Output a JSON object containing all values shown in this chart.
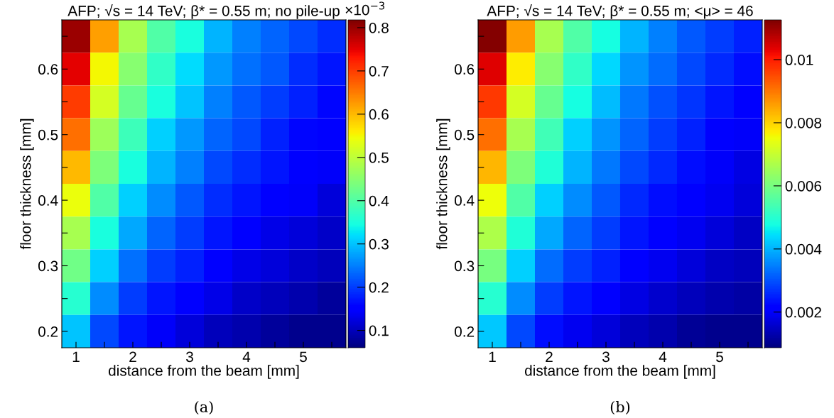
{
  "chart_data": [
    {
      "type": "heatmap",
      "title": "AFP; √s = 14 TeV; β* = 0.55 m; no pile-up",
      "xlabel": "distance from the beam [mm]",
      "ylabel": "floor thickness [mm]",
      "x": [
        1,
        1.5,
        2,
        2.5,
        3,
        3.5,
        4,
        4.5,
        5,
        5.5
      ],
      "y": [
        0.65,
        0.6,
        0.55,
        0.5,
        0.45,
        0.4,
        0.35,
        0.3,
        0.25,
        0.2
      ],
      "cells": [
        [
          0.8,
          0.62,
          0.48,
          0.4,
          0.35,
          0.29,
          0.25,
          0.23,
          0.21,
          0.19
        ],
        [
          0.75,
          0.55,
          0.45,
          0.37,
          0.32,
          0.27,
          0.24,
          0.22,
          0.19,
          0.17
        ],
        [
          0.7,
          0.52,
          0.42,
          0.35,
          0.3,
          0.25,
          0.22,
          0.2,
          0.18,
          0.16
        ],
        [
          0.66,
          0.47,
          0.38,
          0.31,
          0.27,
          0.23,
          0.21,
          0.18,
          0.16,
          0.15
        ],
        [
          0.6,
          0.44,
          0.35,
          0.29,
          0.25,
          0.21,
          0.19,
          0.17,
          0.15,
          0.14
        ],
        [
          0.54,
          0.4,
          0.31,
          0.26,
          0.22,
          0.19,
          0.17,
          0.15,
          0.14,
          0.12
        ],
        [
          0.48,
          0.35,
          0.28,
          0.23,
          0.2,
          0.17,
          0.15,
          0.13,
          0.12,
          0.11
        ],
        [
          0.43,
          0.31,
          0.24,
          0.2,
          0.18,
          0.15,
          0.13,
          0.12,
          0.11,
          0.1
        ],
        [
          0.36,
          0.26,
          0.2,
          0.17,
          0.15,
          0.13,
          0.11,
          0.1,
          0.09,
          0.08
        ],
        [
          0.3,
          0.21,
          0.17,
          0.14,
          0.12,
          0.1,
          0.09,
          0.08,
          0.07,
          0.07
        ]
      ],
      "xlim": [
        0.75,
        5.75
      ],
      "ylim": [
        0.175,
        0.675
      ],
      "xticks": [
        1,
        {
          "value": 1.5,
          "label": null
        },
        2,
        {
          "value": 2.5,
          "label": null
        },
        3,
        {
          "value": 3.5,
          "label": null
        },
        4,
        {
          "value": 4.5,
          "label": null
        },
        5,
        {
          "value": 5.5,
          "label": null
        }
      ],
      "yticks": [
        0.2,
        {
          "value": 0.25,
          "label": null
        },
        0.3,
        {
          "value": 0.35,
          "label": null
        },
        0.4,
        {
          "value": 0.45,
          "label": null
        },
        0.5,
        {
          "value": 0.55,
          "label": null
        },
        0.6,
        {
          "value": 0.65,
          "label": null
        }
      ],
      "clim": [
        0.06,
        0.818
      ],
      "cticks": [
        0.1,
        0.2,
        0.3,
        0.4,
        0.5,
        0.6,
        0.7,
        0.8
      ],
      "annotations": [
        "×10$^{−3}$",
        "(a)"
      ]
    },
    {
      "type": "heatmap",
      "title": "AFP; √s = 14 TeV; β* = 0.55 m; <μ> = 46",
      "xlabel": "distance from the beam [mm]",
      "ylabel": "floor thickness [mm]",
      "x": [
        1,
        1.5,
        2,
        2.5,
        3,
        3.5,
        4,
        4.5,
        5,
        5.5
      ],
      "y": [
        0.65,
        0.6,
        0.55,
        0.5,
        0.45,
        0.4,
        0.35,
        0.3,
        0.25,
        0.2
      ],
      "cells": [
        [
          0.0112,
          0.0086,
          0.0066,
          0.0055,
          0.0048,
          0.004,
          0.0035,
          0.0031,
          0.0028,
          0.0025
        ],
        [
          0.0104,
          0.0077,
          0.0062,
          0.0051,
          0.0044,
          0.0037,
          0.0033,
          0.0029,
          0.0026,
          0.0023
        ],
        [
          0.0097,
          0.0072,
          0.0058,
          0.0048,
          0.0041,
          0.0034,
          0.003,
          0.0027,
          0.0024,
          0.0022
        ],
        [
          0.0091,
          0.0066,
          0.0053,
          0.0043,
          0.0037,
          0.0032,
          0.0028,
          0.0025,
          0.0022,
          0.002
        ],
        [
          0.0083,
          0.0061,
          0.0049,
          0.004,
          0.0034,
          0.0029,
          0.0026,
          0.0023,
          0.002,
          0.0018
        ],
        [
          0.0075,
          0.0055,
          0.0043,
          0.0036,
          0.0031,
          0.0026,
          0.0023,
          0.0021,
          0.0019,
          0.0017
        ],
        [
          0.0067,
          0.0049,
          0.0039,
          0.0032,
          0.0028,
          0.0024,
          0.0021,
          0.0019,
          0.0017,
          0.0015
        ],
        [
          0.006,
          0.0043,
          0.0033,
          0.0028,
          0.0025,
          0.0021,
          0.0019,
          0.0017,
          0.0015,
          0.0014
        ],
        [
          0.005,
          0.0036,
          0.0028,
          0.0024,
          0.0021,
          0.0018,
          0.0016,
          0.0014,
          0.0013,
          0.0012
        ],
        [
          0.0042,
          0.0029,
          0.0023,
          0.0019,
          0.0017,
          0.0014,
          0.0013,
          0.0011,
          0.001,
          0.001
        ]
      ],
      "xlim": [
        0.75,
        5.75
      ],
      "ylim": [
        0.175,
        0.675
      ],
      "xticks": [
        1,
        {
          "value": 1.5,
          "label": null
        },
        2,
        {
          "value": 2.5,
          "label": null
        },
        3,
        {
          "value": 3.5,
          "label": null
        },
        4,
        {
          "value": 4.5,
          "label": null
        },
        5,
        {
          "value": 5.5,
          "label": null
        }
      ],
      "yticks": [
        0.2,
        {
          "value": 0.25,
          "label": null
        },
        0.3,
        {
          "value": 0.35,
          "label": null
        },
        0.4,
        {
          "value": 0.45,
          "label": null
        },
        0.5,
        {
          "value": 0.55,
          "label": null
        },
        0.6,
        {
          "value": 0.65,
          "label": null
        }
      ],
      "clim": [
        0.00087,
        0.01126
      ],
      "cticks": [
        0.002,
        0.004,
        0.006,
        0.008,
        0.01
      ],
      "annotations": [
        "(b)"
      ]
    }
  ]
}
